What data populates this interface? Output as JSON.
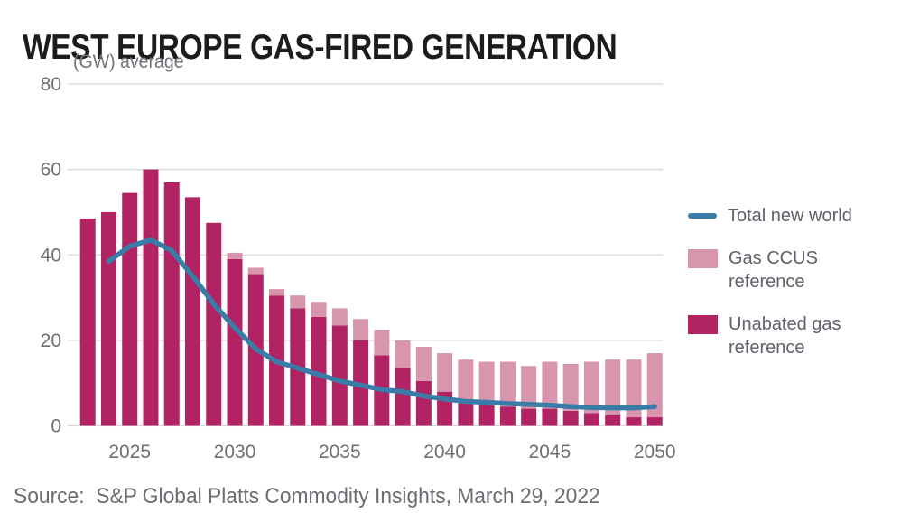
{
  "header": {
    "title": "WEST EUROPE GAS-FIRED GENERATION",
    "subtitle": "(GW) average"
  },
  "footer": {
    "source": "Source:  S&P Global Platts Commodity Insights, March 29, 2022"
  },
  "legend": {
    "items": [
      {
        "label": "Total new world",
        "swatch": "line",
        "color": "#3a7ca8"
      },
      {
        "label": "Gas CCUS reference",
        "swatch": "square",
        "color": "#d795ae"
      },
      {
        "label": "Unabated gas reference",
        "swatch": "square",
        "color": "#b22364"
      }
    ]
  },
  "colors": {
    "gridline": "#d6d6d6",
    "axis_text": "#6d7175",
    "title_text": "#1c1c1c",
    "legend_text": "#5d626b",
    "background": "#ffffff"
  },
  "chart_data": {
    "type": "bar",
    "stacked": true,
    "title": "WEST EUROPE GAS-FIRED GENERATION",
    "ylabel": "(GW) average",
    "xlabel": "",
    "grid": "horizontal",
    "legend_position": "right",
    "ylim": [
      0,
      80
    ],
    "yticks": [
      0,
      20,
      40,
      60,
      80
    ],
    "xticks": [
      "2025",
      "2030",
      "2035",
      "2040",
      "2045",
      "2050"
    ],
    "categories": [
      2023,
      2024,
      2025,
      2026,
      2027,
      2028,
      2029,
      2030,
      2031,
      2032,
      2033,
      2034,
      2035,
      2036,
      2037,
      2038,
      2039,
      2040,
      2041,
      2042,
      2043,
      2044,
      2045,
      2046,
      2047,
      2048,
      2049,
      2050
    ],
    "series": [
      {
        "name": "Unabated gas reference",
        "type": "bar",
        "color": "#b22364",
        "values": [
          48.5,
          50,
          54.5,
          60,
          57,
          53.5,
          47.5,
          39,
          35.5,
          30.5,
          27.5,
          25.5,
          23.5,
          20,
          16.5,
          13.5,
          10.5,
          8,
          5.5,
          5,
          4.5,
          4,
          4,
          3.5,
          3,
          2.5,
          2,
          2
        ]
      },
      {
        "name": "Gas CCUS reference",
        "type": "bar",
        "color": "#d795ae",
        "values": [
          0,
          0,
          0,
          0,
          0,
          0,
          0,
          1.5,
          1.5,
          1.5,
          3,
          3.5,
          4,
          5,
          6,
          6.5,
          8,
          9,
          10,
          10,
          10.5,
          10,
          11,
          11,
          12,
          13,
          13.5,
          15
        ]
      },
      {
        "name": "Total new world",
        "type": "line",
        "color": "#3a7ca8",
        "values": [
          null,
          38.5,
          42,
          43.5,
          41,
          35,
          28.5,
          23,
          18,
          15,
          13.5,
          12,
          10.5,
          9.5,
          8.5,
          8,
          7,
          6.3,
          5.7,
          5.5,
          5.2,
          5,
          4.8,
          4.5,
          4.3,
          4.2,
          4.2,
          4.5
        ]
      }
    ]
  }
}
